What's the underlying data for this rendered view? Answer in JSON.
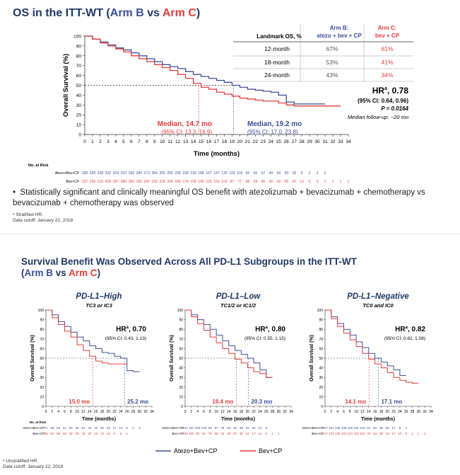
{
  "top": {
    "title_prefix": "OS in the ITT-WT (",
    "arm_b": "Arm B",
    "vs": " vs ",
    "arm_c": "Arm C",
    "title_suffix": ")",
    "bullet": "Statistically significant and clinically meaningful OS benefit with atezolizumab + bevacizumab + chemotherapy vs bevacizumab + chemotherapy was observed",
    "footnote_1": "ᵃ Stratified HR.",
    "footnote_2": "Data cutoff: January 22, 2018"
  },
  "landmark_table": {
    "header_label": "Landmark OS, %",
    "header_b_1": "Arm B:",
    "header_b_2": "atezo + bev + CP",
    "header_c_1": "Arm C:",
    "header_c_2": "bev + CP",
    "rows": [
      {
        "label": "12-month",
        "b": "67%",
        "c": "61%"
      },
      {
        "label": "18-month",
        "b": "53%",
        "c": "41%"
      },
      {
        "label": "24-month",
        "b": "43%",
        "c": "34%"
      }
    ]
  },
  "main_hr": {
    "hr_label": "HR",
    "hr_sup": "a",
    "hr_value": ", 0.78",
    "ci": "(95% CI: 0.64, 0.96)",
    "p": "P = 0.0164",
    "followup": "Median follow-up: ~20 mo"
  },
  "main_medians": {
    "red_label": "Median, 14.7 mo",
    "red_ci": "(95% CI: 13.3, 16.9)",
    "blue_label": "Median, 19.2 mo",
    "blue_ci": "(95% CI: 17.0, 23.8)"
  },
  "risk": {
    "header": "No. at Risk",
    "blue_label": "Atezo+Bev+CP",
    "red_label": "Bev+CP",
    "blue_values": [
      "359",
      "339",
      "328",
      "322",
      "314",
      "310",
      "296",
      "284",
      "273",
      "264",
      "255",
      "250",
      "235",
      "228",
      "218",
      "188",
      "167",
      "147",
      "133",
      "119",
      "103",
      "84",
      "66",
      "57",
      "44",
      "34",
      "28",
      "18",
      "9",
      "2",
      "2",
      "2"
    ],
    "red_values": [
      "337",
      "326",
      "315",
      "308",
      "287",
      "280",
      "266",
      "255",
      "247",
      "233",
      "226",
      "205",
      "189",
      "174",
      "158",
      "142",
      "125",
      "115",
      "102",
      "87",
      "77",
      "68",
      "59",
      "46",
      "40",
      "32",
      "29",
      "22",
      "13",
      "6",
      "3",
      "1",
      "1",
      "1",
      "1"
    ]
  },
  "bottom": {
    "title_line1": "Survival Benefit Was Observed Across All PD-L1 Subgroups in the ITT-WT",
    "title_prefix": "(",
    "arm_b": "Arm B",
    "vs": " vs ",
    "arm_c": "Arm C",
    "title_suffix": ")",
    "legend_blue": "Atezo+Bev+CP",
    "legend_red": "Bev+CP",
    "footnote_1": "ᵃ Unstratified HR.",
    "footnote_2": "Data cutoff: January 22, 2018"
  },
  "colors": {
    "blue": "#3a4f9a",
    "red": "#e53c3c",
    "title": "#1f3864"
  },
  "chart_data": [
    {
      "type": "line",
      "title": "",
      "xlabel": "Time (months)",
      "ylabel": "Overall Survival (%)",
      "xlim": [
        0,
        34
      ],
      "ylim": [
        0,
        100
      ],
      "xticks": [
        0,
        1,
        2,
        3,
        4,
        5,
        6,
        7,
        8,
        9,
        10,
        11,
        12,
        13,
        14,
        15,
        16,
        17,
        18,
        19,
        20,
        21,
        22,
        23,
        24,
        25,
        26,
        27,
        28,
        29,
        30,
        31,
        32,
        33,
        34
      ],
      "yticks": [
        0,
        10,
        20,
        30,
        40,
        50,
        60,
        70,
        80,
        90,
        100
      ],
      "series": [
        {
          "name": "Atezo+Bev+CP",
          "color": "#3a4f9a",
          "x": [
            0,
            1,
            2,
            3,
            4,
            5,
            6,
            7,
            8,
            9,
            10,
            11,
            12,
            13,
            14,
            15,
            16,
            17,
            18,
            19,
            20,
            21,
            22,
            23,
            24,
            25,
            26,
            27,
            28,
            29,
            30,
            31
          ],
          "y": [
            100,
            97,
            94,
            91,
            88,
            86,
            83,
            80,
            77,
            74,
            71,
            69,
            67,
            64,
            61,
            59,
            57,
            55,
            53,
            50,
            48,
            46,
            45,
            44,
            43,
            40,
            33,
            31,
            31,
            31,
            31,
            31
          ]
        },
        {
          "name": "Bev+CP",
          "color": "#e53c3c",
          "x": [
            0,
            1,
            2,
            3,
            4,
            5,
            6,
            7,
            8,
            9,
            10,
            11,
            12,
            13,
            14,
            15,
            16,
            17,
            18,
            19,
            20,
            21,
            22,
            23,
            24,
            25,
            26,
            27,
            28,
            29,
            30,
            31,
            32,
            33
          ],
          "y": [
            100,
            97,
            93,
            90,
            87,
            84,
            80,
            77,
            74,
            71,
            68,
            65,
            61,
            57,
            52,
            48,
            46,
            43,
            41,
            39,
            37,
            36,
            35,
            34,
            34,
            32,
            30,
            29,
            29,
            29,
            29,
            29,
            29,
            29
          ]
        }
      ],
      "median_red": 14.7,
      "median_blue": 19.2
    },
    {
      "type": "line",
      "title": "PD-L1–High",
      "subtitle": "TC3 or IC3",
      "xlabel": "Time (months)",
      "ylabel": "Overall Survival (%)",
      "xlim": [
        0,
        34
      ],
      "ylim": [
        0,
        100
      ],
      "hr_label": "HR",
      "hr_sup": "a",
      "hr_value": ", 0.70",
      "ci": "(95% CI: 0.43, 1.13)",
      "median_red_label": "15.0 mo",
      "median_blue_label": "25.2 mo",
      "median_red": 15.0,
      "median_blue": 25.2,
      "risk_blue": [
        "71",
        "69",
        "64",
        "61",
        "55",
        "54",
        "53",
        "43",
        "34",
        "30",
        "23",
        "17",
        "10",
        "6",
        "2",
        "2"
      ],
      "risk_red": [
        "65",
        "60",
        "59",
        "56",
        "48",
        "39",
        "33",
        "29",
        "19",
        "14",
        "13",
        "6",
        "6",
        "1"
      ],
      "series": [
        {
          "name": "Atezo+Bev+CP",
          "color": "#3a4f9a",
          "x": [
            0,
            2,
            4,
            6,
            8,
            10,
            12,
            14,
            16,
            18,
            20,
            22,
            24,
            26,
            28,
            30
          ],
          "y": [
            100,
            95,
            88,
            83,
            77,
            72,
            68,
            63,
            60,
            56,
            55,
            52,
            50,
            37,
            36,
            36
          ]
        },
        {
          "name": "Bev+CP",
          "color": "#e53c3c",
          "x": [
            0,
            2,
            4,
            6,
            8,
            10,
            12,
            14,
            16,
            18,
            20,
            22,
            24,
            26
          ],
          "y": [
            100,
            92,
            85,
            78,
            72,
            64,
            58,
            52,
            47,
            45,
            44,
            44,
            44,
            44
          ]
        }
      ]
    },
    {
      "type": "line",
      "title": "PD-L1–Low",
      "subtitle": "TC1/2 or IC1/2",
      "xlabel": "Time (months)",
      "ylabel": "Overall Survival (%)",
      "xlim": [
        0,
        34
      ],
      "ylim": [
        0,
        100
      ],
      "hr_label": "HR",
      "hr_sup": "a",
      "hr_value": ", 0.80",
      "ci": "(95% CI: 0.55, 1.15)",
      "median_red_label": "16.4 mo",
      "median_blue_label": "20.3 mo",
      "median_red": 16.4,
      "median_blue": 20.3,
      "risk_blue": [
        "121",
        "107",
        "103",
        "100",
        "93",
        "87",
        "79",
        "63",
        "52",
        "38",
        "32",
        "23",
        "11",
        "6"
      ],
      "risk_red": [
        "105",
        "100",
        "95",
        "91",
        "79",
        "68",
        "63",
        "49",
        "40",
        "35",
        "24",
        "17",
        "11",
        "5",
        "1",
        "1"
      ],
      "series": [
        {
          "name": "Atezo+Bev+CP",
          "color": "#3a4f9a",
          "x": [
            0,
            2,
            4,
            6,
            8,
            10,
            12,
            14,
            16,
            18,
            20,
            22,
            24,
            26,
            28
          ],
          "y": [
            100,
            95,
            90,
            85,
            80,
            74,
            68,
            63,
            58,
            54,
            50,
            45,
            38,
            30,
            30
          ]
        },
        {
          "name": "Bev+CP",
          "color": "#e53c3c",
          "x": [
            0,
            2,
            4,
            6,
            8,
            10,
            12,
            14,
            16,
            18,
            20,
            22,
            24,
            26,
            28
          ],
          "y": [
            100,
            93,
            86,
            79,
            72,
            66,
            60,
            55,
            49,
            45,
            40,
            36,
            34,
            30,
            30
          ]
        }
      ]
    },
    {
      "type": "line",
      "title": "PD-L1–Negative",
      "subtitle": "TC0 and IC0",
      "xlabel": "Time (months)",
      "ylabel": "Overall Survival (%)",
      "xlim": [
        0,
        34
      ],
      "ylim": [
        0,
        100
      ],
      "hr_label": "HR",
      "hr_sup": "a",
      "hr_value": ", 0.82",
      "ci": "(95% CI: 0.62, 1.08)",
      "median_red_label": "14.1 mo",
      "median_blue_label": "17.1 mo",
      "median_red": 14.1,
      "median_blue": 17.1,
      "risk_blue": [
        "167",
        "157",
        "145",
        "138",
        "128",
        "115",
        "103",
        "81",
        "60",
        "39",
        "29",
        "17",
        "8",
        "4"
      ],
      "risk_red": [
        "172",
        "163",
        "145",
        "134",
        "123",
        "115",
        "104",
        "78",
        "64",
        "38",
        "29",
        "17",
        "10",
        "8",
        "1",
        "1",
        "1"
      ],
      "series": [
        {
          "name": "Atezo+Bev+CP",
          "color": "#3a4f9a",
          "x": [
            0,
            2,
            4,
            6,
            8,
            10,
            12,
            14,
            16,
            18,
            20,
            22,
            24,
            26
          ],
          "y": [
            100,
            93,
            86,
            80,
            74,
            67,
            61,
            55,
            50,
            46,
            42,
            38,
            32,
            32
          ]
        },
        {
          "name": "Bev+CP",
          "color": "#e53c3c",
          "x": [
            0,
            2,
            4,
            6,
            8,
            10,
            12,
            14,
            16,
            18,
            20,
            22,
            24,
            26,
            28,
            30
          ],
          "y": [
            100,
            91,
            83,
            76,
            69,
            62,
            55,
            49,
            44,
            40,
            35,
            30,
            27,
            25,
            24,
            24
          ]
        }
      ]
    }
  ]
}
